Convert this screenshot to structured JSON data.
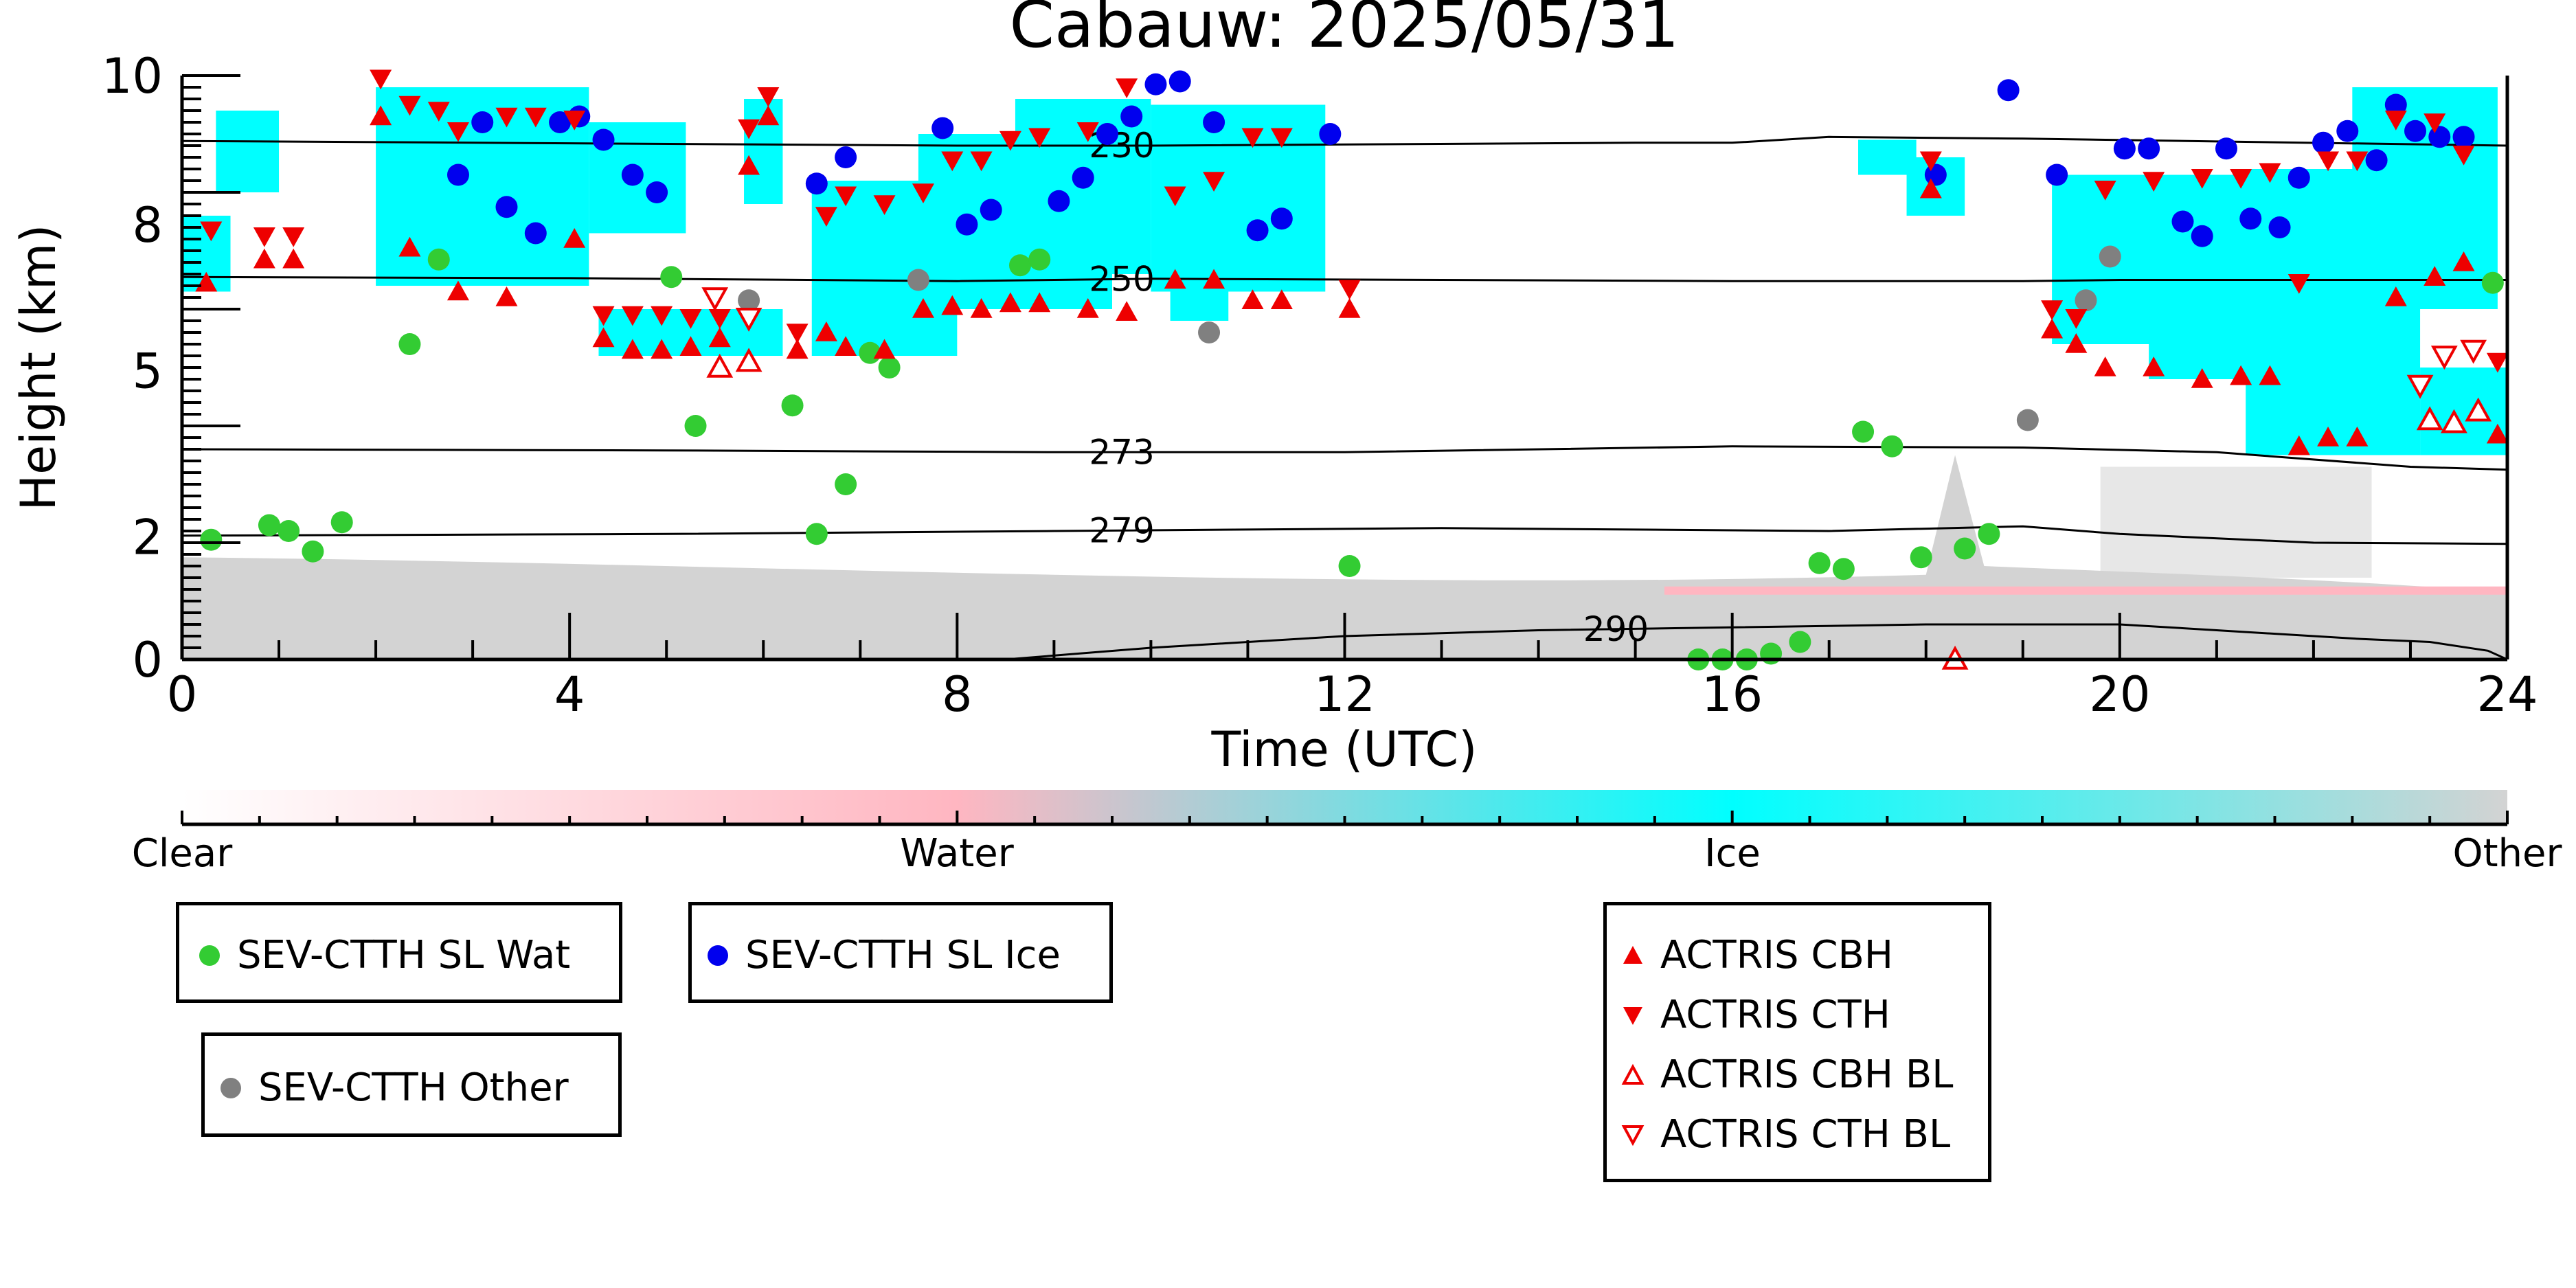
{
  "chart_data": {
    "type": "scatter",
    "title": "Cabauw: 2025/05/31",
    "xlabel": "Time (UTC)",
    "ylabel": "Height (km)",
    "xlim": [
      0,
      24
    ],
    "ylim": [
      0,
      10
    ],
    "xticks": [
      "0",
      "4",
      "8",
      "12",
      "16",
      "20",
      "24"
    ],
    "yticks": [
      "0",
      "2",
      "5",
      "8",
      "10"
    ],
    "grid": false,
    "colorbar": {
      "labels": [
        "Clear",
        "Water",
        "Ice",
        "Other"
      ],
      "colors": [
        "#ffffff",
        "#ffb6c1",
        "#00ffff",
        "#d3d3d3"
      ]
    },
    "temperature_contours": [
      {
        "label": "230",
        "label_x": 9.7,
        "points": [
          [
            0,
            8.88
          ],
          [
            4,
            8.84
          ],
          [
            8,
            8.8
          ],
          [
            10,
            8.8
          ],
          [
            15,
            8.85
          ],
          [
            16,
            8.85
          ],
          [
            17,
            8.95
          ],
          [
            19,
            8.92
          ],
          [
            24,
            8.8
          ]
        ]
      },
      {
        "label": "250",
        "label_x": 9.7,
        "points": [
          [
            0,
            6.55
          ],
          [
            4,
            6.53
          ],
          [
            8,
            6.48
          ],
          [
            10,
            6.52
          ],
          [
            13,
            6.5
          ],
          [
            16,
            6.48
          ],
          [
            19,
            6.48
          ],
          [
            20,
            6.5
          ],
          [
            24,
            6.5
          ]
        ]
      },
      {
        "label": "273",
        "label_x": 9.7,
        "points": [
          [
            0,
            3.6
          ],
          [
            5,
            3.58
          ],
          [
            9,
            3.55
          ],
          [
            12,
            3.55
          ],
          [
            16,
            3.65
          ],
          [
            19,
            3.63
          ],
          [
            21,
            3.55
          ],
          [
            23,
            3.3
          ],
          [
            24,
            3.25
          ]
        ]
      },
      {
        "label": "279",
        "label_x": 9.7,
        "points": [
          [
            0,
            2.12
          ],
          [
            5,
            2.15
          ],
          [
            9,
            2.2
          ],
          [
            13,
            2.25
          ],
          [
            17,
            2.2
          ],
          [
            19,
            2.28
          ],
          [
            20,
            2.15
          ],
          [
            22,
            2.0
          ],
          [
            24,
            1.98
          ]
        ]
      },
      {
        "label": "290",
        "label_x": 14.8,
        "points": [
          [
            8.5,
            0
          ],
          [
            10,
            0.2
          ],
          [
            12,
            0.4
          ],
          [
            14,
            0.5
          ],
          [
            16,
            0.55
          ],
          [
            18,
            0.6
          ],
          [
            20,
            0.6
          ],
          [
            21,
            0.5
          ],
          [
            22.5,
            0.35
          ],
          [
            23.2,
            0.3
          ],
          [
            23.8,
            0.15
          ],
          [
            24,
            0
          ]
        ]
      }
    ],
    "series": [
      {
        "name": "SEV-CTTH SL Wat",
        "marker": "circle",
        "color": "#33cc33",
        "points": [
          [
            0.3,
            2.05
          ],
          [
            0.9,
            2.3
          ],
          [
            1.1,
            2.2
          ],
          [
            1.35,
            1.85
          ],
          [
            1.65,
            2.35
          ],
          [
            2.35,
            5.4
          ],
          [
            2.65,
            6.85
          ],
          [
            5.05,
            6.55
          ],
          [
            5.3,
            4.0
          ],
          [
            6.3,
            4.35
          ],
          [
            6.55,
            2.15
          ],
          [
            6.85,
            3.0
          ],
          [
            7.1,
            5.25
          ],
          [
            7.3,
            5.0
          ],
          [
            8.65,
            6.75
          ],
          [
            8.85,
            6.85
          ],
          [
            12.05,
            1.6
          ],
          [
            15.65,
            0.0
          ],
          [
            15.9,
            0.0
          ],
          [
            16.15,
            0.0
          ],
          [
            16.4,
            0.1
          ],
          [
            16.7,
            0.3
          ],
          [
            16.9,
            1.65
          ],
          [
            17.15,
            1.55
          ],
          [
            17.35,
            3.9
          ],
          [
            17.65,
            3.65
          ],
          [
            17.95,
            1.75
          ],
          [
            18.4,
            1.9
          ],
          [
            18.65,
            2.15
          ],
          [
            23.85,
            6.45
          ]
        ]
      },
      {
        "name": "SEV-CTTH SL Ice",
        "marker": "circle",
        "color": "#0000ee",
        "points": [
          [
            2.85,
            8.3
          ],
          [
            3.1,
            9.2
          ],
          [
            3.35,
            7.75
          ],
          [
            3.65,
            7.3
          ],
          [
            3.9,
            9.2
          ],
          [
            4.1,
            9.3
          ],
          [
            4.35,
            8.9
          ],
          [
            4.65,
            8.3
          ],
          [
            4.9,
            8.0
          ],
          [
            6.55,
            8.15
          ],
          [
            6.85,
            8.6
          ],
          [
            7.85,
            9.1
          ],
          [
            8.1,
            7.45
          ],
          [
            8.35,
            7.7
          ],
          [
            9.05,
            7.85
          ],
          [
            9.3,
            8.25
          ],
          [
            9.55,
            9.0
          ],
          [
            9.8,
            9.3
          ],
          [
            10.05,
            9.85
          ],
          [
            10.3,
            9.9
          ],
          [
            10.65,
            9.2
          ],
          [
            11.1,
            7.35
          ],
          [
            11.35,
            7.55
          ],
          [
            11.85,
            9.0
          ],
          [
            18.1,
            8.3
          ],
          [
            18.85,
            9.75
          ],
          [
            19.35,
            8.3
          ],
          [
            20.05,
            8.75
          ],
          [
            20.3,
            8.75
          ],
          [
            20.65,
            7.5
          ],
          [
            20.85,
            7.25
          ],
          [
            21.1,
            8.75
          ],
          [
            21.35,
            7.55
          ],
          [
            21.65,
            7.4
          ],
          [
            21.85,
            8.25
          ],
          [
            22.1,
            8.85
          ],
          [
            22.35,
            9.05
          ],
          [
            22.65,
            8.55
          ],
          [
            22.85,
            9.5
          ],
          [
            23.05,
            9.05
          ],
          [
            23.3,
            8.95
          ],
          [
            23.55,
            8.95
          ]
        ]
      },
      {
        "name": "SEV-CTTH Other",
        "marker": "circle",
        "color": "#808080",
        "points": [
          [
            5.85,
            6.15
          ],
          [
            7.6,
            6.5
          ],
          [
            10.6,
            5.6
          ],
          [
            19.05,
            4.1
          ],
          [
            19.65,
            6.15
          ],
          [
            19.9,
            6.9
          ]
        ]
      },
      {
        "name": "ACTRIS CBH",
        "marker": "triangle-up",
        "color": "#ee0000",
        "filled": true,
        "points": [
          [
            0.25,
            6.45
          ],
          [
            0.85,
            6.85
          ],
          [
            1.15,
            6.85
          ],
          [
            2.05,
            9.3
          ],
          [
            2.35,
            7.05
          ],
          [
            2.85,
            6.3
          ],
          [
            3.35,
            6.2
          ],
          [
            4.05,
            7.2
          ],
          [
            4.35,
            5.5
          ],
          [
            4.65,
            5.3
          ],
          [
            4.95,
            5.3
          ],
          [
            5.25,
            5.35
          ],
          [
            5.55,
            5.5
          ],
          [
            5.85,
            8.45
          ],
          [
            6.05,
            9.3
          ],
          [
            6.35,
            5.3
          ],
          [
            6.65,
            5.6
          ],
          [
            6.85,
            5.35
          ],
          [
            7.25,
            5.3
          ],
          [
            7.65,
            6.0
          ],
          [
            7.95,
            6.05
          ],
          [
            8.25,
            6.0
          ],
          [
            8.55,
            6.1
          ],
          [
            8.85,
            6.1
          ],
          [
            9.35,
            6.0
          ],
          [
            9.75,
            5.95
          ],
          [
            10.25,
            6.5
          ],
          [
            10.65,
            6.5
          ],
          [
            11.05,
            6.15
          ],
          [
            11.35,
            6.15
          ],
          [
            12.05,
            6.0
          ],
          [
            18.05,
            8.05
          ],
          [
            19.3,
            5.65
          ],
          [
            19.55,
            5.4
          ],
          [
            19.85,
            5.0
          ],
          [
            20.35,
            5.0
          ],
          [
            20.85,
            4.8
          ],
          [
            21.25,
            4.85
          ],
          [
            21.55,
            4.85
          ],
          [
            21.85,
            3.65
          ],
          [
            22.15,
            3.8
          ],
          [
            22.45,
            3.8
          ],
          [
            22.85,
            6.2
          ],
          [
            23.25,
            6.55
          ],
          [
            23.55,
            6.8
          ],
          [
            23.9,
            3.85
          ]
        ]
      },
      {
        "name": "ACTRIS CTH",
        "marker": "triangle-down",
        "color": "#ee0000",
        "filled": true,
        "points": [
          [
            0.3,
            7.35
          ],
          [
            0.85,
            7.25
          ],
          [
            1.15,
            7.25
          ],
          [
            2.05,
            9.95
          ],
          [
            2.35,
            9.5
          ],
          [
            2.65,
            9.4
          ],
          [
            2.85,
            9.05
          ],
          [
            3.35,
            9.3
          ],
          [
            3.65,
            9.3
          ],
          [
            4.05,
            9.25
          ],
          [
            4.35,
            5.9
          ],
          [
            4.65,
            5.9
          ],
          [
            4.95,
            5.9
          ],
          [
            5.25,
            5.85
          ],
          [
            5.55,
            5.85
          ],
          [
            5.85,
            9.1
          ],
          [
            6.05,
            9.65
          ],
          [
            6.35,
            5.6
          ],
          [
            6.65,
            7.6
          ],
          [
            6.85,
            7.95
          ],
          [
            7.25,
            7.8
          ],
          [
            7.65,
            8.0
          ],
          [
            7.95,
            8.55
          ],
          [
            8.25,
            8.55
          ],
          [
            8.55,
            8.9
          ],
          [
            8.85,
            8.95
          ],
          [
            9.35,
            9.05
          ],
          [
            9.75,
            9.8
          ],
          [
            10.25,
            7.95
          ],
          [
            10.65,
            8.2
          ],
          [
            11.05,
            8.95
          ],
          [
            11.35,
            8.95
          ],
          [
            12.05,
            6.35
          ],
          [
            18.05,
            8.55
          ],
          [
            19.3,
            6.0
          ],
          [
            19.55,
            5.85
          ],
          [
            19.85,
            8.05
          ],
          [
            20.35,
            8.2
          ],
          [
            20.85,
            8.25
          ],
          [
            21.25,
            8.25
          ],
          [
            21.55,
            8.35
          ],
          [
            21.85,
            6.45
          ],
          [
            22.15,
            8.55
          ],
          [
            22.45,
            8.55
          ],
          [
            22.85,
            9.25
          ],
          [
            23.25,
            9.2
          ],
          [
            23.55,
            8.65
          ],
          [
            23.9,
            5.1
          ]
        ]
      },
      {
        "name": "ACTRIS CBH BL",
        "marker": "triangle-up",
        "color": "#ee0000",
        "filled": false,
        "points": [
          [
            5.55,
            5.0
          ],
          [
            5.85,
            5.1
          ],
          [
            18.3,
            0.0
          ],
          [
            23.2,
            4.1
          ],
          [
            23.45,
            4.05
          ],
          [
            23.7,
            4.25
          ]
        ]
      },
      {
        "name": "ACTRIS CTH BL",
        "marker": "triangle-down",
        "color": "#ee0000",
        "filled": false,
        "points": [
          [
            5.5,
            6.2
          ],
          [
            5.85,
            5.85
          ],
          [
            23.1,
            4.7
          ],
          [
            23.35,
            5.2
          ],
          [
            23.65,
            5.3
          ]
        ]
      }
    ]
  },
  "legend": {
    "wat": "SEV-CTTH SL Wat",
    "ice": "SEV-CTTH SL Ice",
    "other": "SEV-CTTH Other",
    "cbh": "ACTRIS CBH",
    "cth": "ACTRIS CTH",
    "cbh_bl": "ACTRIS CBH BL",
    "cth_bl": "ACTRIS CTH BL"
  }
}
